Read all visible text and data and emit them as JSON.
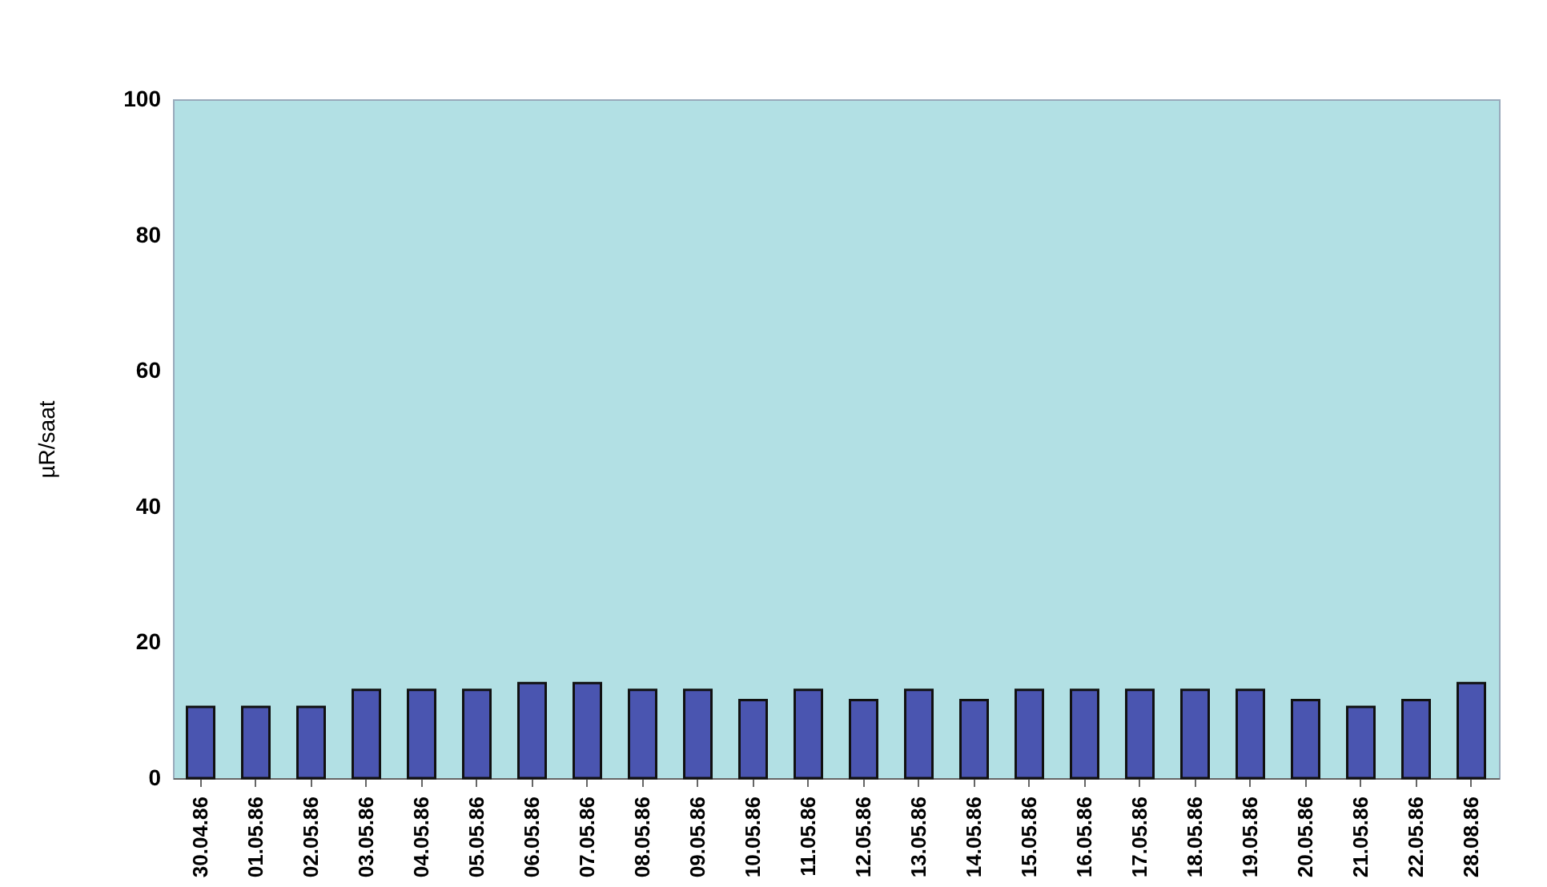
{
  "chart_data": {
    "type": "bar",
    "ylabel": "µR/saat",
    "categories": [
      "30.04.86",
      "01.05.86",
      "02.05.86",
      "03.05.86",
      "04.05.86",
      "05.05.86",
      "06.05.86",
      "07.05.86",
      "08.05.86",
      "09.05.86",
      "10.05.86",
      "11.05.86",
      "12.05.86",
      "13.05.86",
      "14.05.86",
      "15.05.86",
      "16.05.86",
      "17.05.86",
      "18.05.86",
      "19.05.86",
      "20.05.86",
      "21.05.86",
      "22.05.86",
      "28.08.86"
    ],
    "values": [
      10.5,
      10.5,
      10.5,
      13,
      13,
      13,
      14,
      14,
      13,
      13,
      11.5,
      13,
      11.5,
      13,
      11.5,
      13,
      13,
      13,
      13,
      13,
      11.5,
      10.5,
      11.5,
      14
    ],
    "color": "#4a55b0",
    "ylim": [
      0,
      100
    ],
    "yticks": [
      0,
      20,
      40,
      60,
      80,
      100
    ],
    "grid": false
  }
}
